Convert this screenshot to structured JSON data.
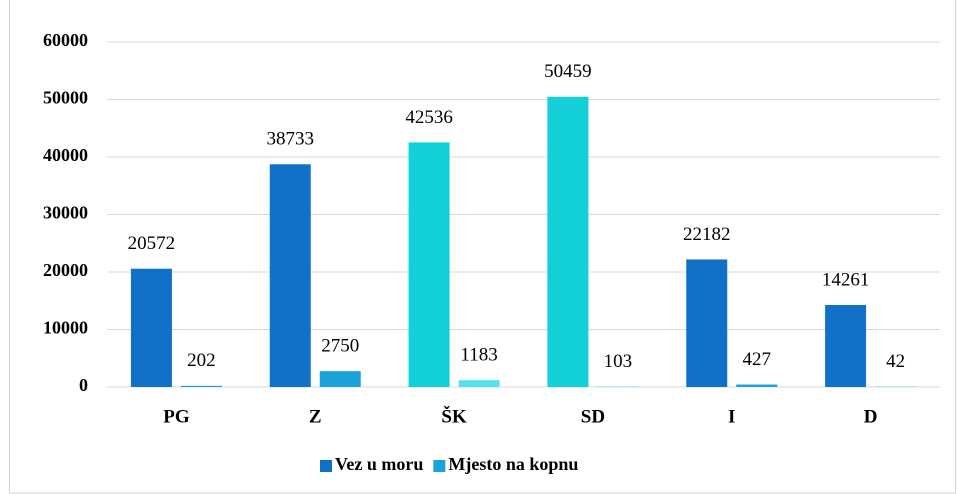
{
  "chart_data": {
    "type": "bar",
    "categories": [
      "PG",
      "Z",
      "ŠK",
      "SD",
      "I",
      "D"
    ],
    "series": [
      {
        "name": "Vez u moru",
        "color": "#1170c8",
        "colors": [
          "#1170c8",
          "#1170c8",
          "#12cfd8",
          "#12cfd8",
          "#1170c8",
          "#1170c8"
        ],
        "values": [
          20572,
          38733,
          42536,
          50459,
          22182,
          14261
        ]
      },
      {
        "name": "Mjesto na kopnu",
        "color": "#1ba2da",
        "colors": [
          "#1ba2da",
          "#1ba2da",
          "#52e2ee",
          "#52e2ee",
          "#1ba2da",
          "#1ba2da"
        ],
        "values": [
          202,
          2750,
          1183,
          103,
          427,
          42
        ]
      }
    ],
    "ylim": [
      0,
      60000
    ],
    "yticks": [
      0,
      10000,
      20000,
      30000,
      40000,
      50000,
      60000
    ],
    "grid": true,
    "legend": "bottom"
  }
}
